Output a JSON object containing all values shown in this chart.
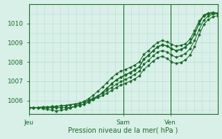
{
  "title": "",
  "xlabel": "Pression niveau de la mer( hPa )",
  "ylabel": "",
  "background_color": "#d8f0e8",
  "grid_color": "#b8ddd0",
  "line_color": "#1a6b2a",
  "xlim": [
    0,
    48
  ],
  "ylim": [
    1005.3,
    1011.0
  ],
  "yticks": [
    1006,
    1007,
    1008,
    1009,
    1010
  ],
  "vline_positions": [
    0,
    24,
    36
  ],
  "xtick_positions": [
    0,
    24,
    36
  ],
  "xtick_labels": [
    "Jeu",
    "Sam",
    "Ven"
  ],
  "series": [
    [
      1005.62,
      1005.64,
      1005.64,
      1005.66,
      1005.66,
      1005.68,
      1005.7,
      1005.73,
      1005.75,
      1005.78,
      1005.82,
      1005.86,
      1005.92,
      1005.98,
      1006.06,
      1006.15,
      1006.26,
      1006.38,
      1006.52,
      1006.68,
      1006.8,
      1006.9,
      1007.0,
      1007.12,
      1007.28,
      1007.62,
      1007.82,
      1008.05,
      1008.22,
      1008.3,
      1008.18,
      1008.0,
      1007.92,
      1007.98,
      1008.1,
      1008.35,
      1008.8,
      1009.4,
      1009.95,
      1010.2,
      1010.35,
      1010.4
    ],
    [
      1005.62,
      1005.64,
      1005.64,
      1005.66,
      1005.66,
      1005.68,
      1005.7,
      1005.73,
      1005.75,
      1005.78,
      1005.82,
      1005.86,
      1005.94,
      1006.02,
      1006.12,
      1006.24,
      1006.38,
      1006.52,
      1006.68,
      1006.85,
      1006.98,
      1007.1,
      1007.22,
      1007.36,
      1007.52,
      1007.88,
      1008.08,
      1008.32,
      1008.52,
      1008.6,
      1008.52,
      1008.35,
      1008.25,
      1008.32,
      1008.44,
      1008.68,
      1009.12,
      1009.68,
      1010.18,
      1010.38,
      1010.48,
      1010.52
    ],
    [
      1005.62,
      1005.64,
      1005.62,
      1005.58,
      1005.54,
      1005.5,
      1005.46,
      1005.5,
      1005.54,
      1005.62,
      1005.7,
      1005.82,
      1005.96,
      1006.1,
      1006.28,
      1006.48,
      1006.7,
      1006.94,
      1007.18,
      1007.38,
      1007.52,
      1007.62,
      1007.72,
      1007.84,
      1008.0,
      1008.4,
      1008.6,
      1008.82,
      1009.02,
      1009.12,
      1009.04,
      1008.92,
      1008.82,
      1008.86,
      1008.94,
      1009.18,
      1009.62,
      1010.14,
      1010.4,
      1010.48,
      1010.52,
      1010.5
    ],
    [
      1005.62,
      1005.64,
      1005.64,
      1005.64,
      1005.64,
      1005.64,
      1005.64,
      1005.64,
      1005.64,
      1005.64,
      1005.68,
      1005.74,
      1005.82,
      1005.92,
      1006.06,
      1006.22,
      1006.42,
      1006.64,
      1006.86,
      1007.06,
      1007.2,
      1007.32,
      1007.44,
      1007.58,
      1007.74,
      1008.14,
      1008.34,
      1008.58,
      1008.78,
      1008.88,
      1008.82,
      1008.68,
      1008.58,
      1008.64,
      1008.76,
      1009.0,
      1009.44,
      1009.98,
      1010.42,
      1010.52,
      1010.56,
      1010.52
    ],
    [
      1005.62,
      1005.64,
      1005.64,
      1005.64,
      1005.64,
      1005.64,
      1005.64,
      1005.64,
      1005.64,
      1005.64,
      1005.68,
      1005.74,
      1005.82,
      1005.92,
      1006.06,
      1006.22,
      1006.42,
      1006.65,
      1006.88,
      1007.08,
      1007.22,
      1007.34,
      1007.46,
      1007.6,
      1007.76,
      1008.16,
      1008.36,
      1008.6,
      1008.8,
      1008.9,
      1008.84,
      1008.7,
      1008.6,
      1008.66,
      1008.78,
      1009.02,
      1009.46,
      1010.0,
      1010.44,
      1010.54,
      1010.58,
      1010.54
    ]
  ]
}
